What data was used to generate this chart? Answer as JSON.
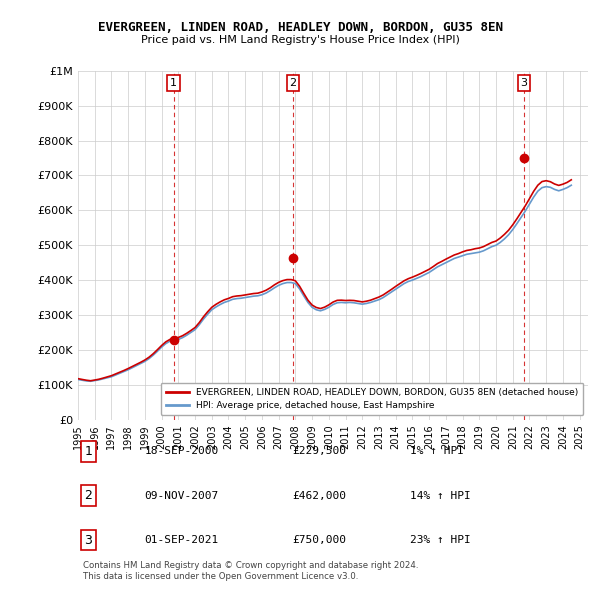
{
  "title": "EVERGREEN, LINDEN ROAD, HEADLEY DOWN, BORDON, GU35 8EN",
  "subtitle": "Price paid vs. HM Land Registry's House Price Index (HPI)",
  "legend_property": "EVERGREEN, LINDEN ROAD, HEADLEY DOWN, BORDON, GU35 8EN (detached house)",
  "legend_hpi": "HPI: Average price, detached house, East Hampshire",
  "footnote1": "Contains HM Land Registry data © Crown copyright and database right 2024.",
  "footnote2": "This data is licensed under the Open Government Licence v3.0.",
  "property_color": "#cc0000",
  "hpi_color": "#6699cc",
  "sale_marker_color": "#cc0000",
  "dashed_line_color": "#cc0000",
  "grid_color": "#cccccc",
  "bg_color": "#ffffff",
  "ylim": [
    0,
    1000000
  ],
  "xlim_start": 1995.0,
  "xlim_end": 2025.5,
  "yticks": [
    0,
    100000,
    200000,
    300000,
    400000,
    500000,
    600000,
    700000,
    800000,
    900000,
    1000000
  ],
  "ytick_labels": [
    "£0",
    "£100K",
    "£200K",
    "£300K",
    "£400K",
    "£500K",
    "£600K",
    "£700K",
    "£800K",
    "£900K",
    "£1M"
  ],
  "xticks": [
    1995,
    1996,
    1997,
    1998,
    1999,
    2000,
    2001,
    2002,
    2003,
    2004,
    2005,
    2006,
    2007,
    2008,
    2009,
    2010,
    2011,
    2012,
    2013,
    2014,
    2015,
    2016,
    2017,
    2018,
    2019,
    2020,
    2021,
    2022,
    2023,
    2024,
    2025
  ],
  "sales": [
    {
      "num": 1,
      "date": "18-SEP-2000",
      "year": 2000.72,
      "price": 229500,
      "pct": "1%",
      "direction": "↑"
    },
    {
      "num": 2,
      "date": "09-NOV-2007",
      "year": 2007.86,
      "price": 462000,
      "pct": "14%",
      "direction": "↑"
    },
    {
      "num": 3,
      "date": "01-SEP-2021",
      "year": 2021.67,
      "price": 750000,
      "pct": "23%",
      "direction": "↑"
    }
  ],
  "hpi_years": [
    1995.0,
    1995.25,
    1995.5,
    1995.75,
    1996.0,
    1996.25,
    1996.5,
    1996.75,
    1997.0,
    1997.25,
    1997.5,
    1997.75,
    1998.0,
    1998.25,
    1998.5,
    1998.75,
    1999.0,
    1999.25,
    1999.5,
    1999.75,
    2000.0,
    2000.25,
    2000.5,
    2000.75,
    2001.0,
    2001.25,
    2001.5,
    2001.75,
    2002.0,
    2002.25,
    2002.5,
    2002.75,
    2003.0,
    2003.25,
    2003.5,
    2003.75,
    2004.0,
    2004.25,
    2004.5,
    2004.75,
    2005.0,
    2005.25,
    2005.5,
    2005.75,
    2006.0,
    2006.25,
    2006.5,
    2006.75,
    2007.0,
    2007.25,
    2007.5,
    2007.75,
    2008.0,
    2008.25,
    2008.5,
    2008.75,
    2009.0,
    2009.25,
    2009.5,
    2009.75,
    2010.0,
    2010.25,
    2010.5,
    2010.75,
    2011.0,
    2011.25,
    2011.5,
    2011.75,
    2012.0,
    2012.25,
    2012.5,
    2012.75,
    2013.0,
    2013.25,
    2013.5,
    2013.75,
    2014.0,
    2014.25,
    2014.5,
    2014.75,
    2015.0,
    2015.25,
    2015.5,
    2015.75,
    2016.0,
    2016.25,
    2016.5,
    2016.75,
    2017.0,
    2017.25,
    2017.5,
    2017.75,
    2018.0,
    2018.25,
    2018.5,
    2018.75,
    2019.0,
    2019.25,
    2019.5,
    2019.75,
    2020.0,
    2020.25,
    2020.5,
    2020.75,
    2021.0,
    2021.25,
    2021.5,
    2021.75,
    2022.0,
    2022.25,
    2022.5,
    2022.75,
    2023.0,
    2023.25,
    2023.5,
    2023.75,
    2024.0,
    2024.25,
    2024.5
  ],
  "hpi_values": [
    115000,
    113000,
    111000,
    110000,
    112000,
    114000,
    117000,
    120000,
    123000,
    128000,
    133000,
    138000,
    143000,
    149000,
    155000,
    161000,
    167000,
    175000,
    185000,
    196000,
    208000,
    218000,
    225000,
    228000,
    230000,
    235000,
    242000,
    250000,
    258000,
    272000,
    288000,
    302000,
    315000,
    323000,
    330000,
    336000,
    340000,
    345000,
    347000,
    348000,
    350000,
    352000,
    354000,
    355000,
    358000,
    363000,
    370000,
    378000,
    385000,
    390000,
    393000,
    393000,
    390000,
    375000,
    355000,
    336000,
    322000,
    315000,
    312000,
    316000,
    322000,
    330000,
    335000,
    336000,
    335000,
    336000,
    335000,
    333000,
    331000,
    333000,
    336000,
    340000,
    344000,
    350000,
    358000,
    366000,
    374000,
    382000,
    390000,
    396000,
    400000,
    405000,
    410000,
    416000,
    422000,
    430000,
    438000,
    444000,
    450000,
    456000,
    462000,
    466000,
    470000,
    474000,
    476000,
    478000,
    480000,
    484000,
    490000,
    496000,
    500000,
    508000,
    518000,
    530000,
    545000,
    562000,
    580000,
    598000,
    618000,
    638000,
    655000,
    665000,
    668000,
    666000,
    660000,
    656000,
    660000,
    665000,
    672000
  ],
  "prop_years": [
    1995.0,
    1995.25,
    1995.5,
    1995.75,
    1996.0,
    1996.25,
    1996.5,
    1996.75,
    1997.0,
    1997.25,
    1997.5,
    1997.75,
    1998.0,
    1998.25,
    1998.5,
    1998.75,
    1999.0,
    1999.25,
    1999.5,
    1999.75,
    2000.0,
    2000.25,
    2000.5,
    2000.75,
    2001.0,
    2001.25,
    2001.5,
    2001.75,
    2002.0,
    2002.25,
    2002.5,
    2002.75,
    2003.0,
    2003.25,
    2003.5,
    2003.75,
    2004.0,
    2004.25,
    2004.5,
    2004.75,
    2005.0,
    2005.25,
    2005.5,
    2005.75,
    2006.0,
    2006.25,
    2006.5,
    2006.75,
    2007.0,
    2007.25,
    2007.5,
    2007.75,
    2008.0,
    2008.25,
    2008.5,
    2008.75,
    2009.0,
    2009.25,
    2009.5,
    2009.75,
    2010.0,
    2010.25,
    2010.5,
    2010.75,
    2011.0,
    2011.25,
    2011.5,
    2011.75,
    2012.0,
    2012.25,
    2012.5,
    2012.75,
    2013.0,
    2013.25,
    2013.5,
    2013.75,
    2014.0,
    2014.25,
    2014.5,
    2014.75,
    2015.0,
    2015.25,
    2015.5,
    2015.75,
    2016.0,
    2016.25,
    2016.5,
    2016.75,
    2017.0,
    2017.25,
    2017.5,
    2017.75,
    2018.0,
    2018.25,
    2018.5,
    2018.75,
    2019.0,
    2019.25,
    2019.5,
    2019.75,
    2020.0,
    2020.25,
    2020.5,
    2020.75,
    2021.0,
    2021.25,
    2021.5,
    2021.75,
    2022.0,
    2022.25,
    2022.5,
    2022.75,
    2023.0,
    2023.25,
    2023.5,
    2023.75,
    2024.0,
    2024.25,
    2024.5
  ],
  "prop_values": [
    117500,
    115200,
    113000,
    111500,
    113500,
    115800,
    119000,
    122500,
    126000,
    131000,
    136000,
    141000,
    146500,
    152500,
    158500,
    164500,
    171000,
    179000,
    189000,
    200500,
    212500,
    223000,
    230000,
    233000,
    235500,
    240500,
    247500,
    255500,
    264000,
    278000,
    294500,
    309000,
    322000,
    330500,
    337500,
    343500,
    347500,
    352500,
    354500,
    355500,
    357500,
    359500,
    361500,
    362500,
    366000,
    371000,
    378000,
    386500,
    393500,
    398500,
    401500,
    401500,
    398000,
    382500,
    362000,
    342500,
    328500,
    321500,
    318500,
    322500,
    329000,
    337000,
    342000,
    342500,
    341500,
    342000,
    341500,
    339500,
    337500,
    339500,
    342500,
    347000,
    351500,
    357500,
    365500,
    373500,
    382000,
    390000,
    398000,
    404000,
    408500,
    413500,
    419000,
    425000,
    431000,
    439000,
    447500,
    453500,
    460000,
    466000,
    472000,
    476000,
    481000,
    485000,
    487000,
    490000,
    492000,
    496000,
    502000,
    508000,
    512000,
    520500,
    531000,
    543000,
    558500,
    576000,
    594500,
    613000,
    633500,
    654500,
    672000,
    682500,
    685000,
    682000,
    675500,
    671500,
    675000,
    680000,
    687500
  ]
}
